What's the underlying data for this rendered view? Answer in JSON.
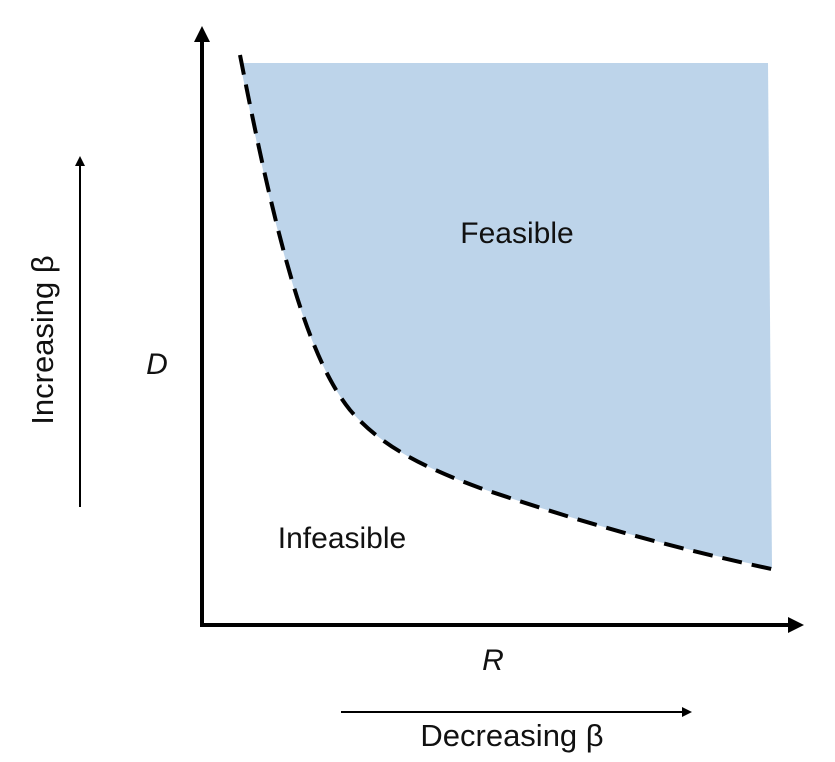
{
  "diagram": {
    "regions": {
      "feasible_label": "Feasible",
      "infeasible_label": "Infeasible"
    },
    "axes": {
      "y_label": "D",
      "x_label": "R"
    },
    "annotations": {
      "vertical_arrow_label": "Increasing β",
      "horizontal_arrow_label": "Decreasing β"
    },
    "colors": {
      "feasible_fill": "#bdd4ea",
      "axis": "#000000",
      "boundary": "#000000"
    },
    "boundary_style": "dashed"
  }
}
